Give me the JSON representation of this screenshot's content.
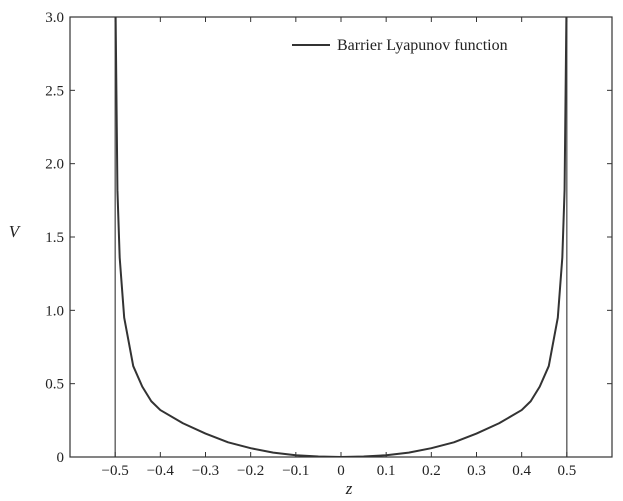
{
  "chart_data": {
    "type": "line",
    "title": "",
    "xlabel": "z",
    "ylabel": "V",
    "xlim": [
      -0.6,
      0.6
    ],
    "ylim": [
      0,
      3.0
    ],
    "x_ticks": [
      "-0.5",
      "-0.4",
      "-0.3",
      "-0.2",
      "-0.1",
      "0",
      "0.1",
      "0.2",
      "0.3",
      "0.4",
      "0.5"
    ],
    "y_ticks": [
      "0",
      "0.5",
      "1.0",
      "1.5",
      "2.0",
      "2.5",
      "3.0"
    ],
    "grid": false,
    "legend_position": "top-right",
    "boundary_lines_x": [
      -0.5,
      0.5
    ],
    "series": [
      {
        "name": "Barrier Lyapunov function",
        "color": "#333333",
        "x": [
          -0.499,
          -0.495,
          -0.49,
          -0.48,
          -0.46,
          -0.44,
          -0.42,
          -0.4,
          -0.35,
          -0.3,
          -0.25,
          -0.2,
          -0.15,
          -0.1,
          -0.05,
          0,
          0.05,
          0.1,
          0.15,
          0.2,
          0.25,
          0.3,
          0.35,
          0.4,
          0.42,
          0.44,
          0.46,
          0.48,
          0.49,
          0.495,
          0.499
        ],
        "y": [
          3.0,
          1.82,
          1.36,
          0.95,
          0.62,
          0.48,
          0.38,
          0.32,
          0.23,
          0.16,
          0.1,
          0.06,
          0.03,
          0.012,
          0.003,
          0,
          0.003,
          0.012,
          0.03,
          0.06,
          0.1,
          0.16,
          0.23,
          0.32,
          0.38,
          0.48,
          0.62,
          0.95,
          1.36,
          1.82,
          3.0
        ]
      }
    ]
  }
}
